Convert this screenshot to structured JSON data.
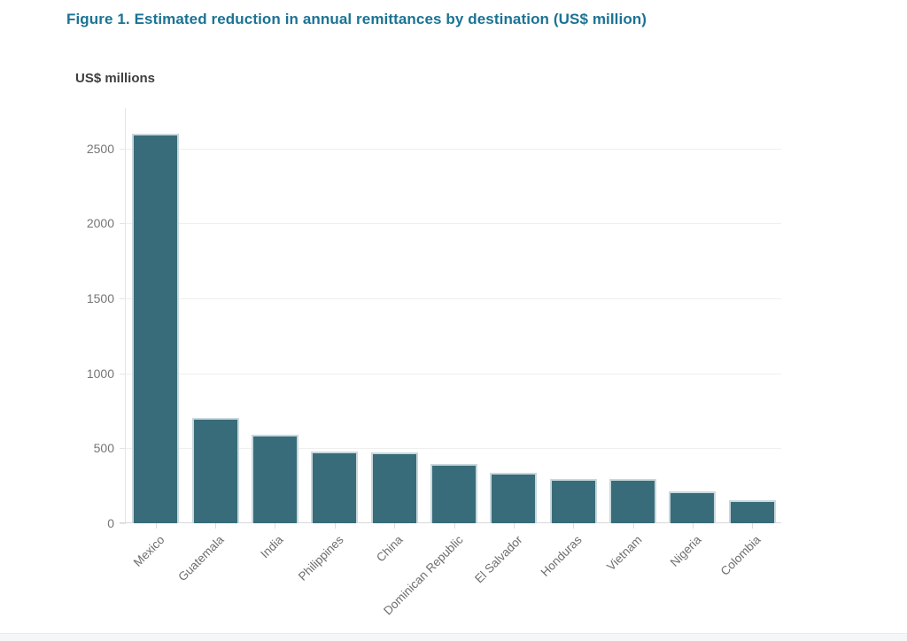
{
  "figure": {
    "title": "Figure 1. Estimated reduction in annual remittances by destination (US$ million)",
    "y_axis_title": "US$ millions"
  },
  "chart_data": {
    "type": "bar",
    "title": "Figure 1. Estimated reduction in annual remittances by destination (US$ million)",
    "ylabel": "US$ millions",
    "xlabel": "",
    "categories": [
      "Mexico",
      "Guatemala",
      "India",
      "Philippines",
      "China",
      "Dominican Republic",
      "El Salvador",
      "Honduras",
      "Vietnam",
      "Nigeria",
      "Colombia"
    ],
    "values": [
      2600,
      700,
      590,
      480,
      470,
      395,
      335,
      295,
      295,
      215,
      155
    ],
    "y_ticks": [
      0,
      500,
      1000,
      1500,
      2000,
      2500
    ],
    "ylim": [
      0,
      2770
    ],
    "grid": true,
    "legend": false,
    "colors": {
      "bar": "#396c7a",
      "bar_border": "#c9d8dc",
      "title": "#1b7394",
      "tick_text": "#757575",
      "category_text": "#6e6e6e",
      "ylabel_text": "#3f3f3f",
      "gridline": "#efefef"
    }
  }
}
